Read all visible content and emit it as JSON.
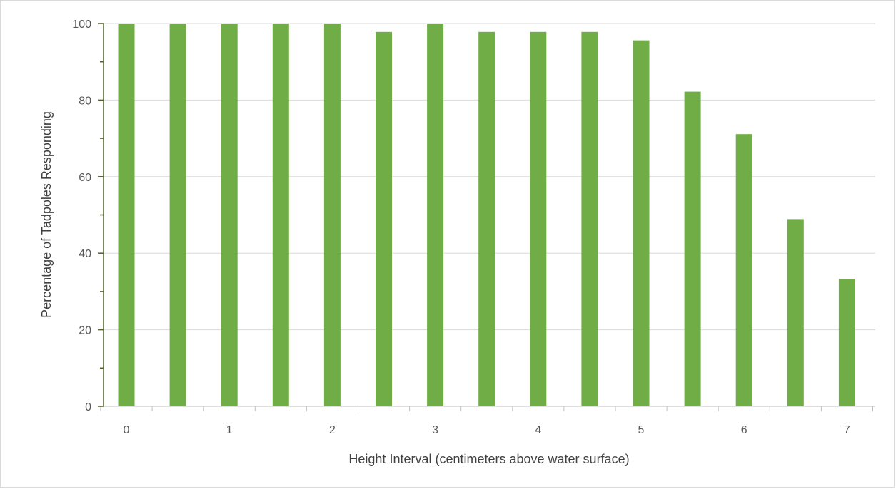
{
  "chart_data": {
    "type": "bar",
    "title": "",
    "xlabel": "Height Interval (centimeters above water surface)",
    "ylabel": "Percentage of Tadpoles Responding",
    "x_tick_labels": [
      "0",
      "1",
      "2",
      "3",
      "4",
      "5",
      "6",
      "7"
    ],
    "x": [
      0,
      0.5,
      1,
      1.5,
      2,
      2.5,
      3,
      3.5,
      4,
      4.5,
      5,
      5.5,
      6,
      6.5,
      7
    ],
    "values": [
      100,
      100,
      100,
      100,
      100,
      97.8,
      100,
      97.8,
      97.8,
      97.8,
      95.6,
      82.2,
      71.1,
      48.9,
      33.3
    ],
    "ylim": [
      0,
      100
    ],
    "y_tick_labels": [
      "0",
      "20",
      "40",
      "60",
      "80",
      "100"
    ],
    "y_ticks": [
      0,
      20,
      40,
      60,
      80,
      100
    ],
    "y_minor_ticks": [
      10,
      30,
      50,
      70,
      90
    ],
    "grid": true,
    "legend": "none",
    "colors": {
      "bar": "#70ad47",
      "y_axis": "#4f6228",
      "gridline": "#d9d9d9",
      "x_axis": "#bfbfbf",
      "text": "#595959"
    }
  }
}
